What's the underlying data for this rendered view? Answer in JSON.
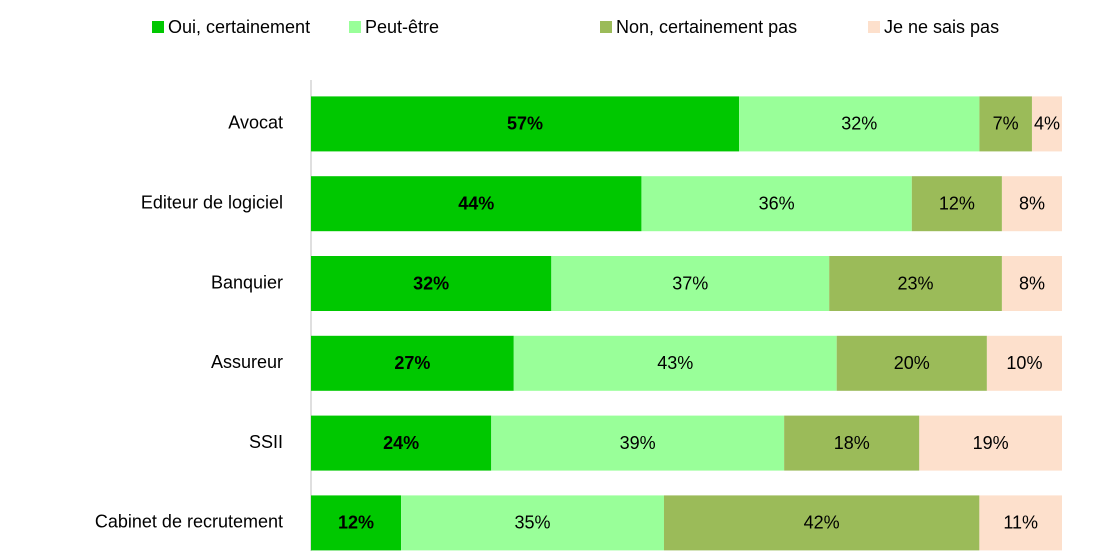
{
  "chart_data": {
    "type": "stacked-bar-horizontal",
    "categories": [
      "Avocat",
      "Editeur de logiciel",
      "Banquier",
      "Assureur",
      "SSII",
      "Cabinet de recrutement"
    ],
    "series": [
      {
        "name": "Oui, certainement",
        "color": "#00c800",
        "values": [
          57,
          44,
          32,
          27,
          24,
          12
        ],
        "value_labels": [
          "57%",
          "44%",
          "32%",
          "27%",
          "24%",
          "12%"
        ]
      },
      {
        "name": "Peut-être",
        "color": "#99ff99",
        "values": [
          32,
          36,
          37,
          43,
          39,
          35
        ],
        "value_labels": [
          "32%",
          "36%",
          "37%",
          "43%",
          "39%",
          "35%"
        ]
      },
      {
        "name": "Non, certainement pas",
        "color": "#9bbb59",
        "values": [
          7,
          12,
          23,
          20,
          18,
          42
        ],
        "value_labels": [
          "7%",
          "12%",
          "23%",
          "20%",
          "18%",
          "42%"
        ]
      },
      {
        "name": "Je ne sais pas",
        "color": "#fde0cc",
        "values": [
          4,
          8,
          8,
          10,
          19,
          11
        ],
        "value_labels": [
          "4%",
          "8%",
          "8%",
          "10%",
          "19%",
          "11%"
        ]
      }
    ],
    "legend": "top"
  }
}
